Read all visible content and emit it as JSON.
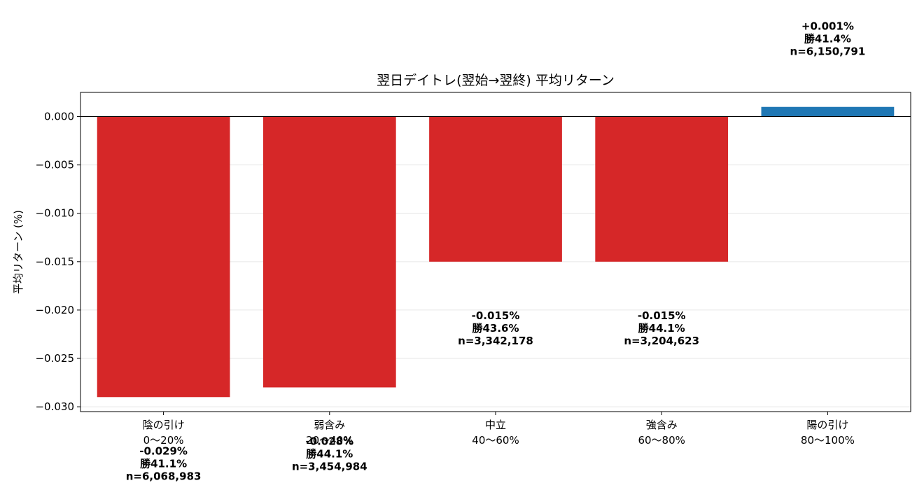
{
  "chart_data": {
    "type": "bar",
    "title": "翌日デイトレ(翌始→翌終) 平均リターン",
    "xlabel": "",
    "ylabel": "平均リターン (%)",
    "categories": [
      [
        "陰の引け",
        "0〜20%"
      ],
      [
        "弱含み",
        "20〜40%"
      ],
      [
        "中立",
        "40〜60%"
      ],
      [
        "強含み",
        "60〜80%"
      ],
      [
        "陽の引け",
        "80〜100%"
      ]
    ],
    "values": [
      -0.029,
      -0.028,
      -0.015,
      -0.015,
      0.001
    ],
    "bar_labels": [
      [
        "-0.029%",
        "勝41.1%",
        "n=6,068,983"
      ],
      [
        "-0.028%",
        "勝44.1%",
        "n=3,454,984"
      ],
      [
        "-0.015%",
        "勝43.6%",
        "n=3,342,178"
      ],
      [
        "-0.015%",
        "勝44.1%",
        "n=3,204,623"
      ],
      [
        "+0.001%",
        "勝41.4%",
        "n=6,150,791"
      ]
    ],
    "bar_colors": [
      "#d62728",
      "#d62728",
      "#d62728",
      "#d62728",
      "#1f77b4"
    ],
    "ylim": [
      -0.0305,
      0.0025
    ],
    "yticks": [
      0.0,
      -0.005,
      -0.01,
      -0.015,
      -0.02,
      -0.025,
      -0.03
    ],
    "ytick_labels": [
      "0.000",
      "−0.005",
      "−0.010",
      "−0.015",
      "−0.020",
      "−0.025",
      "−0.030"
    ],
    "grid": "y",
    "zero_line": true,
    "legend": "none"
  }
}
